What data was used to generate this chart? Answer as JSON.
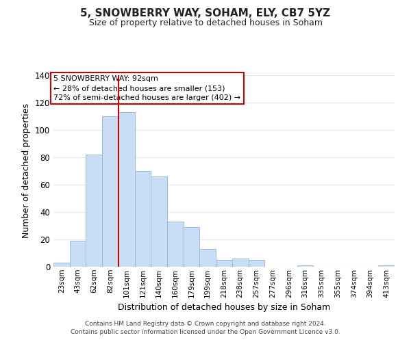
{
  "title": "5, SNOWBERRY WAY, SOHAM, ELY, CB7 5YZ",
  "subtitle": "Size of property relative to detached houses in Soham",
  "xlabel": "Distribution of detached houses by size in Soham",
  "ylabel": "Number of detached properties",
  "bar_labels": [
    "23sqm",
    "43sqm",
    "62sqm",
    "82sqm",
    "101sqm",
    "121sqm",
    "140sqm",
    "160sqm",
    "179sqm",
    "199sqm",
    "218sqm",
    "238sqm",
    "257sqm",
    "277sqm",
    "296sqm",
    "316sqm",
    "335sqm",
    "355sqm",
    "374sqm",
    "394sqm",
    "413sqm"
  ],
  "bar_values": [
    3,
    19,
    82,
    110,
    113,
    70,
    66,
    33,
    29,
    13,
    5,
    6,
    5,
    0,
    0,
    1,
    0,
    0,
    0,
    0,
    1
  ],
  "bar_color": "#c9ddf5",
  "bar_edge_color": "#9bbce0",
  "vline_color": "#cc0000",
  "vline_position": 3.5,
  "ylim": [
    0,
    140
  ],
  "yticks": [
    0,
    20,
    40,
    60,
    80,
    100,
    120,
    140
  ],
  "annotation_title": "5 SNOWBERRY WAY: 92sqm",
  "annotation_line1": "← 28% of detached houses are smaller (153)",
  "annotation_line2": "72% of semi-detached houses are larger (402) →",
  "annotation_box_color": "#ffffff",
  "annotation_box_edge": "#cc0000",
  "footer_line1": "Contains HM Land Registry data © Crown copyright and database right 2024.",
  "footer_line2": "Contains public sector information licensed under the Open Government Licence v3.0.",
  "background_color": "#ffffff",
  "grid_color": "#dce8f5"
}
